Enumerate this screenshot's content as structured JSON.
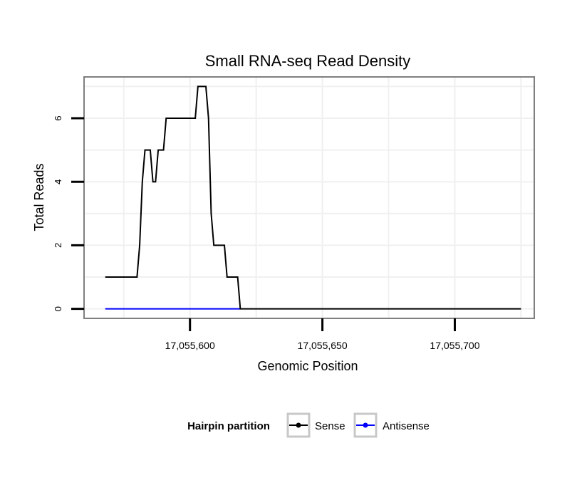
{
  "chart_data": {
    "type": "line",
    "title": "Small RNA-seq Read Density",
    "xlabel": "Genomic Position",
    "ylabel": "Total Reads",
    "xlim": [
      17055560,
      17055730
    ],
    "ylim": [
      -0.3,
      7.3
    ],
    "x_ticks": [
      17055600,
      17055650,
      17055700
    ],
    "x_tick_labels": [
      "17,055,600",
      "17,055,650",
      "17,055,700"
    ],
    "y_ticks": [
      0,
      2,
      4,
      6
    ],
    "y_tick_labels": [
      "0",
      "2",
      "4",
      "6"
    ],
    "grid": true,
    "legend": {
      "title": "Hairpin partition",
      "position": "bottom",
      "entries": [
        "Sense",
        "Antisense"
      ]
    },
    "series": [
      {
        "name": "Sense",
        "color": "#000000",
        "points": [
          [
            17055568,
            1
          ],
          [
            17055580,
            1
          ],
          [
            17055581,
            2
          ],
          [
            17055582,
            4
          ],
          [
            17055583,
            5
          ],
          [
            17055585,
            5
          ],
          [
            17055586,
            4
          ],
          [
            17055587,
            4
          ],
          [
            17055588,
            5
          ],
          [
            17055590,
            5
          ],
          [
            17055591,
            6
          ],
          [
            17055602,
            6
          ],
          [
            17055603,
            7
          ],
          [
            17055606,
            7
          ],
          [
            17055607,
            6
          ],
          [
            17055608,
            3
          ],
          [
            17055609,
            2
          ],
          [
            17055613,
            2
          ],
          [
            17055614,
            1
          ],
          [
            17055618,
            1
          ],
          [
            17055619,
            0
          ],
          [
            17055725,
            0
          ]
        ]
      },
      {
        "name": "Antisense",
        "color": "#0000ff",
        "points": [
          [
            17055568,
            0
          ],
          [
            17055619,
            0
          ]
        ]
      }
    ]
  }
}
